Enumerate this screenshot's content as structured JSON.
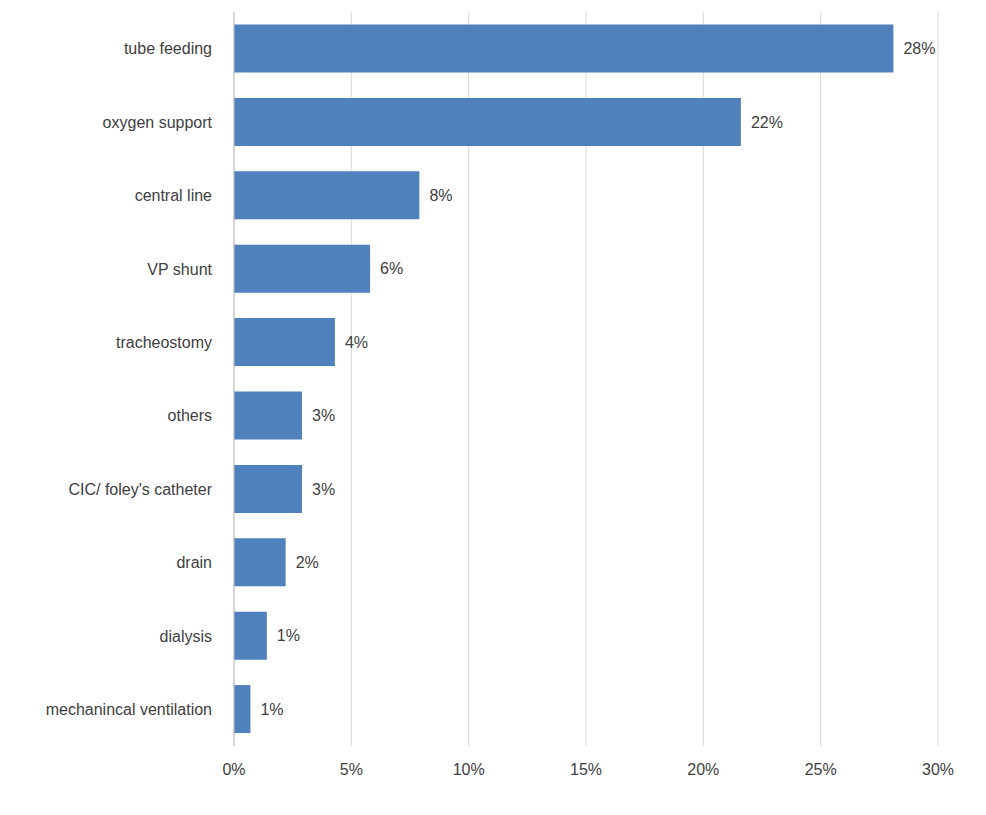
{
  "chart_data": {
    "type": "bar",
    "orientation": "horizontal",
    "categories": [
      "tube feeding",
      "oxygen support",
      "central line",
      "VP shunt",
      "tracheostomy",
      "others",
      "CIC/ foley's catheter",
      "drain",
      "dialysis",
      "mechanincal ventilation"
    ],
    "values": [
      28.1,
      21.6,
      7.9,
      5.8,
      4.3,
      2.9,
      2.9,
      2.2,
      1.4,
      0.7
    ],
    "value_labels": [
      "28%",
      "22%",
      "8%",
      "6%",
      "4%",
      "3%",
      "3%",
      "2%",
      "1%",
      "1%"
    ],
    "data_labels": true,
    "color": "#4f81bd",
    "xlim": [
      0,
      30
    ],
    "xticks": [
      {
        "value": 0,
        "label": "0%"
      },
      {
        "value": 5,
        "label": "5%"
      },
      {
        "value": 10,
        "label": "10%"
      },
      {
        "value": 15,
        "label": "15%"
      },
      {
        "value": 20,
        "label": "20%"
      },
      {
        "value": 25,
        "label": "25%"
      },
      {
        "value": 30,
        "label": "30%"
      }
    ],
    "grid": true
  }
}
